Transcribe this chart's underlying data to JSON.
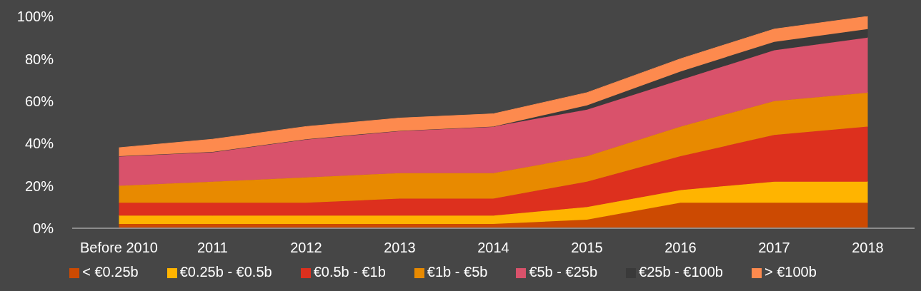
{
  "chart_data": {
    "type": "area",
    "stacked": true,
    "categories": [
      "Before 2010",
      "2011",
      "2012",
      "2013",
      "2014",
      "2015",
      "2016",
      "2017",
      "2018"
    ],
    "series": [
      {
        "name": "< €0.25b",
        "color": "#cc4a02",
        "values": [
          2,
          2,
          2,
          2,
          2,
          4,
          12,
          12,
          12
        ]
      },
      {
        "name": "€0.25b - €0.5b",
        "color": "#ffb400",
        "values": [
          4,
          4,
          4,
          4,
          4,
          6,
          6,
          10,
          10
        ]
      },
      {
        "name": "€0.5b - €1b",
        "color": "#dd301e",
        "values": [
          6,
          6,
          6,
          8,
          8,
          12,
          16,
          22,
          26
        ]
      },
      {
        "name": "€1b - €5b",
        "color": "#e88a00",
        "values": [
          8,
          10,
          12,
          12,
          12,
          12,
          14,
          16,
          16
        ]
      },
      {
        "name": "€5b - €25b",
        "color": "#d9526b",
        "values": [
          14,
          14,
          18,
          20,
          22,
          22,
          22,
          24,
          26
        ]
      },
      {
        "name": "€25b - €100b",
        "color": "#3a3a3a",
        "values": [
          0,
          0,
          0,
          0,
          0,
          2,
          4,
          4,
          4
        ]
      },
      {
        "name": "> €100b",
        "color": "#fd8a4e",
        "values": [
          4,
          6,
          6,
          6,
          6,
          6,
          6,
          6,
          6
        ]
      }
    ],
    "ylim": [
      0,
      100
    ],
    "yticks": [
      {
        "value": 0,
        "label": "0%"
      },
      {
        "value": 20,
        "label": "20%"
      },
      {
        "value": 40,
        "label": "40%"
      },
      {
        "value": 60,
        "label": "60%"
      },
      {
        "value": 80,
        "label": "80%"
      },
      {
        "value": 100,
        "label": "100%"
      }
    ],
    "grid": false,
    "legend": "bottom"
  }
}
